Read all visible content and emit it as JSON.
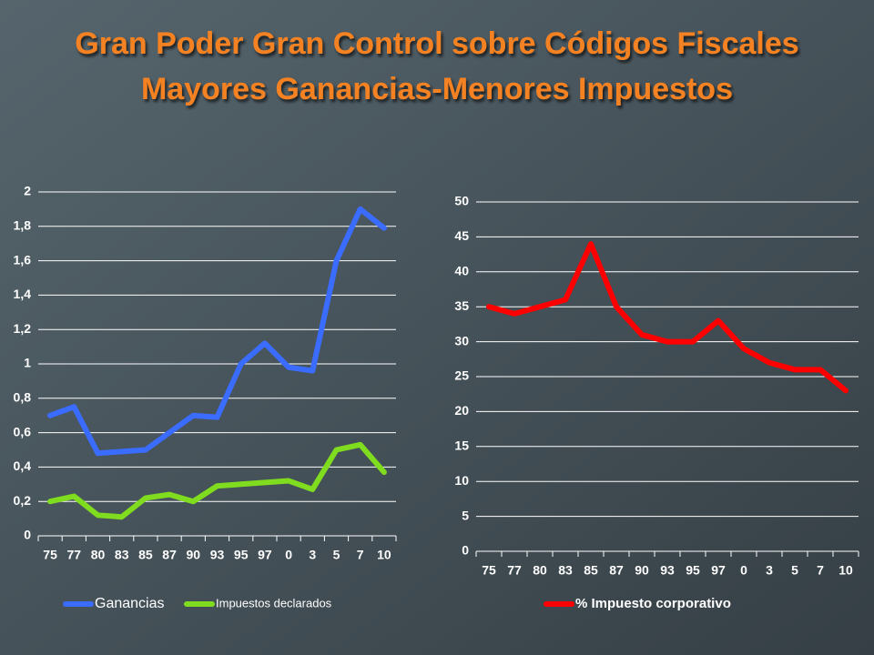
{
  "slide_title": [
    "Gran Poder Gran Control sobre Códigos Fiscales",
    "Mayores Ganancias-Menores Impuestos"
  ],
  "chart_data": [
    {
      "type": "line",
      "categories": [
        "75",
        "77",
        "80",
        "83",
        "85",
        "87",
        "90",
        "93",
        "95",
        "97",
        "0",
        "3",
        "5",
        "7",
        "10"
      ],
      "series": [
        {
          "name": "Ganancias",
          "color": "#3a6cff",
          "values": [
            0.7,
            0.75,
            0.48,
            0.49,
            0.5,
            0.6,
            0.7,
            0.69,
            1.0,
            1.12,
            0.98,
            0.96,
            1.6,
            1.9,
            1.79
          ]
        },
        {
          "name": "Impuestos declarados",
          "color": "#7fdc1f",
          "values": [
            0.2,
            0.23,
            0.12,
            0.11,
            0.22,
            0.24,
            0.2,
            0.29,
            0.3,
            0.31,
            0.32,
            0.27,
            0.5,
            0.53,
            0.37
          ]
        }
      ],
      "ylim": [
        0,
        2
      ],
      "yticks": [
        0,
        {
          "value": 0.2,
          "label": "0,2"
        },
        {
          "value": 0.4,
          "label": "0,4"
        },
        {
          "value": 0.6,
          "label": "0,6"
        },
        {
          "value": 0.8,
          "label": "0,8"
        },
        1,
        {
          "value": 1.2,
          "label": "1,2"
        },
        {
          "value": 1.4,
          "label": "1,4"
        },
        {
          "value": 1.6,
          "label": "1,6"
        },
        {
          "value": 1.8,
          "label": "1,8"
        },
        2
      ],
      "grid": true,
      "legend": "bottom"
    },
    {
      "type": "line",
      "categories": [
        "75",
        "77",
        "80",
        "83",
        "85",
        "87",
        "90",
        "93",
        "95",
        "97",
        "0",
        "3",
        "5",
        "7",
        "10"
      ],
      "series": [
        {
          "name": "% Impuesto corporativo",
          "color": "#ff0000",
          "values": [
            35,
            34,
            35,
            36,
            44,
            35,
            31,
            30,
            30,
            33,
            29,
            27,
            26,
            26,
            23
          ]
        }
      ],
      "ylim": [
        0,
        50
      ],
      "yticks": [
        0,
        5,
        10,
        15,
        20,
        25,
        30,
        35,
        40,
        45,
        50
      ],
      "grid": true,
      "legend": "bottom"
    }
  ]
}
